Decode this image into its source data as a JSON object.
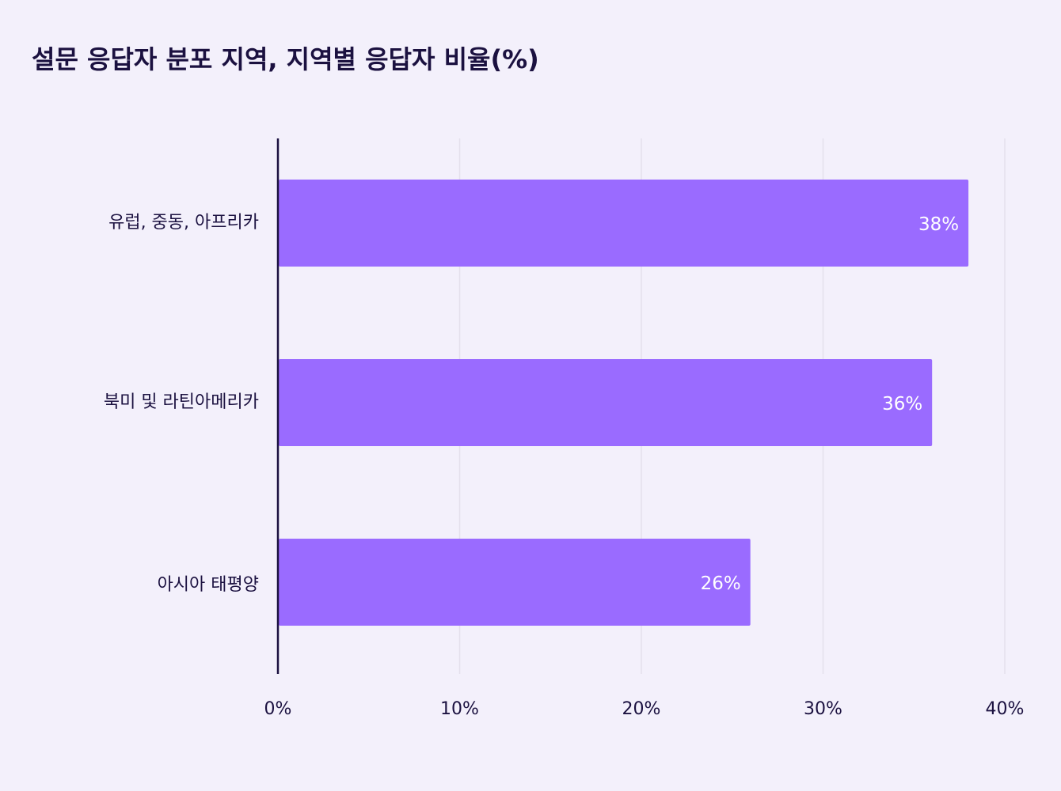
{
  "chart_data": {
    "type": "bar",
    "orientation": "horizontal",
    "title": "설문 응답자 분포 지역, 지역별 응답자 비율(%)",
    "categories": [
      "유럽, 중동, 아프리카",
      "북미 및 라틴아메리카",
      "아시아 태평양"
    ],
    "values": [
      38,
      36,
      26
    ],
    "value_labels": [
      "38%",
      "36%",
      "26%"
    ],
    "xlim": [
      0,
      40
    ],
    "x_ticks": [
      0,
      10,
      20,
      30,
      40
    ],
    "x_tick_labels": [
      "0%",
      "10%",
      "20%",
      "30%",
      "40%"
    ],
    "xlabel": "",
    "ylabel": "",
    "grid": "vertical",
    "legend": "none",
    "colors": {
      "bar": "#9a6bff",
      "axis": "#1b1140",
      "grid": "#e4e0ec",
      "text": "#1b1140",
      "value_text": "#ffffff",
      "background": "#f3f0fb"
    }
  }
}
